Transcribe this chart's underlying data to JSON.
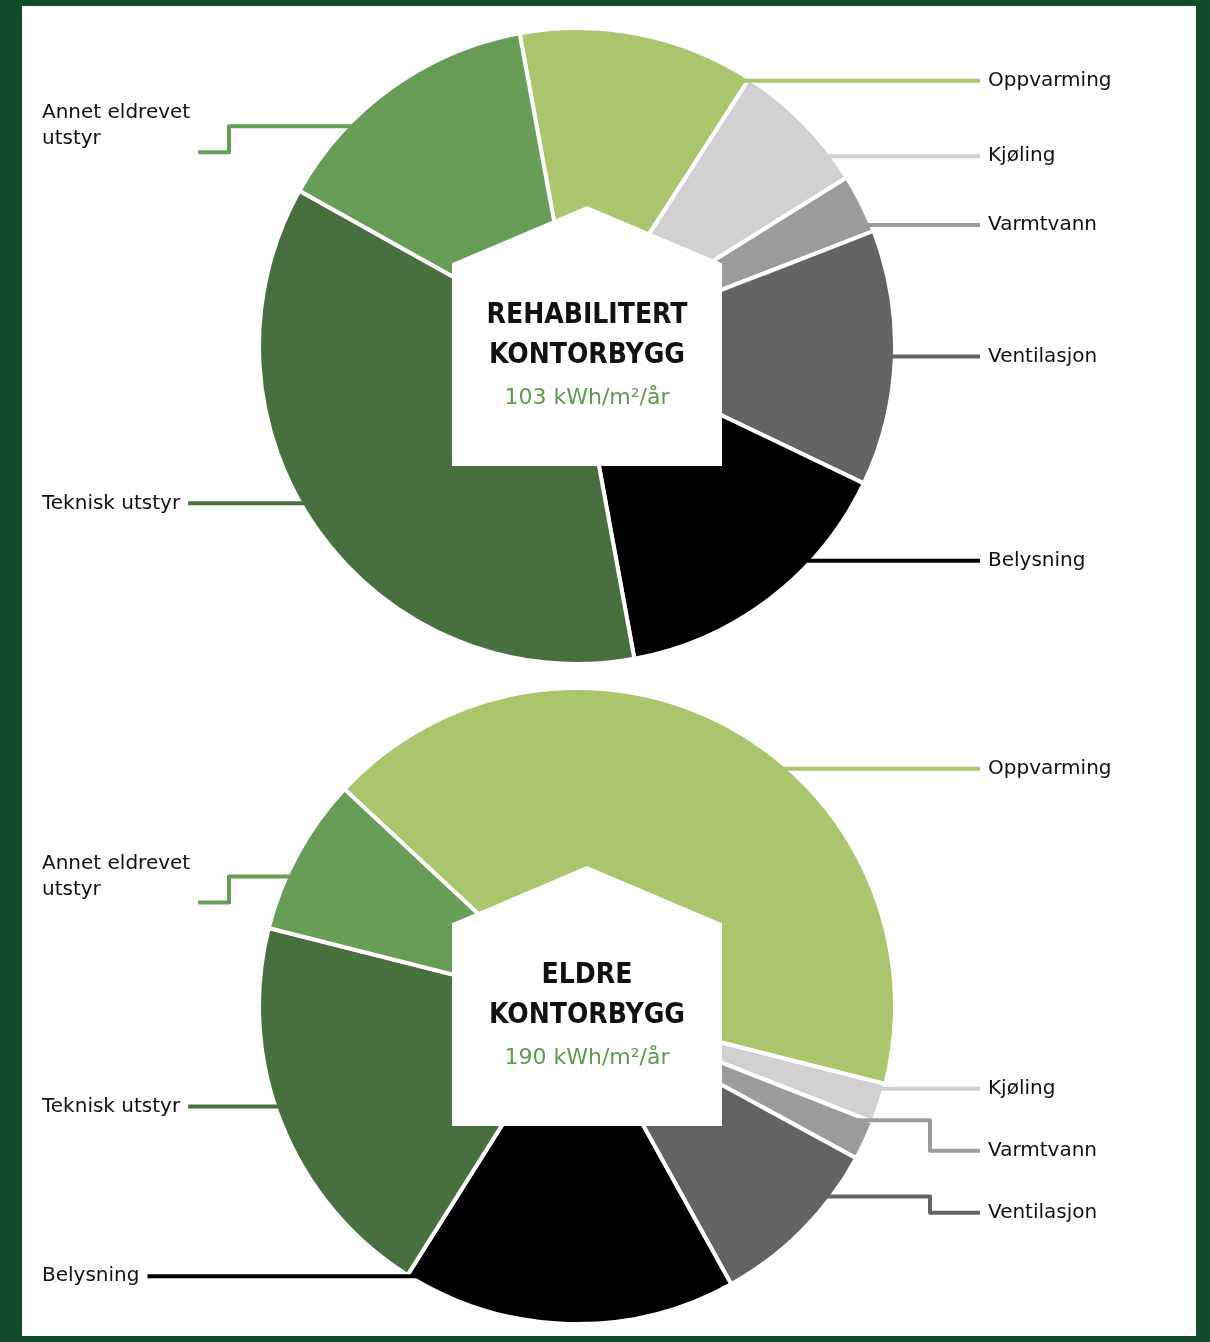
{
  "chart_data": [
    {
      "type": "pie",
      "title": "REHABILITERT KONTORBYGG",
      "subtitle": "103 kWh/m²/år",
      "categories": [
        "Oppvarming",
        "Kjøling",
        "Varmtvann",
        "Ventilasjon",
        "Belysning",
        "Teknisk utstyr",
        "Annet eldrevet utstyr"
      ],
      "values": [
        12,
        7,
        3,
        13,
        15,
        36,
        14
      ],
      "colors": [
        "#a9c66c",
        "#d0d0d0",
        "#9b9b9b",
        "#636363",
        "#000000",
        "#48703f",
        "#689d58"
      ]
    },
    {
      "type": "pie",
      "title": "ELDRE KONTORBYGG",
      "subtitle": "190 kWh/m²/år",
      "categories": [
        "Oppvarming",
        "Kjøling",
        "Varmtvann",
        "Ventilasjon",
        "Belysning",
        "Teknisk utstyr",
        "Annet eldrevet utstyr"
      ],
      "values": [
        42,
        2,
        2,
        9,
        17,
        20,
        8
      ],
      "colors": [
        "#a9c66c",
        "#d0d0d0",
        "#9b9b9b",
        "#636363",
        "#000000",
        "#48703f",
        "#689d58"
      ]
    }
  ]
}
